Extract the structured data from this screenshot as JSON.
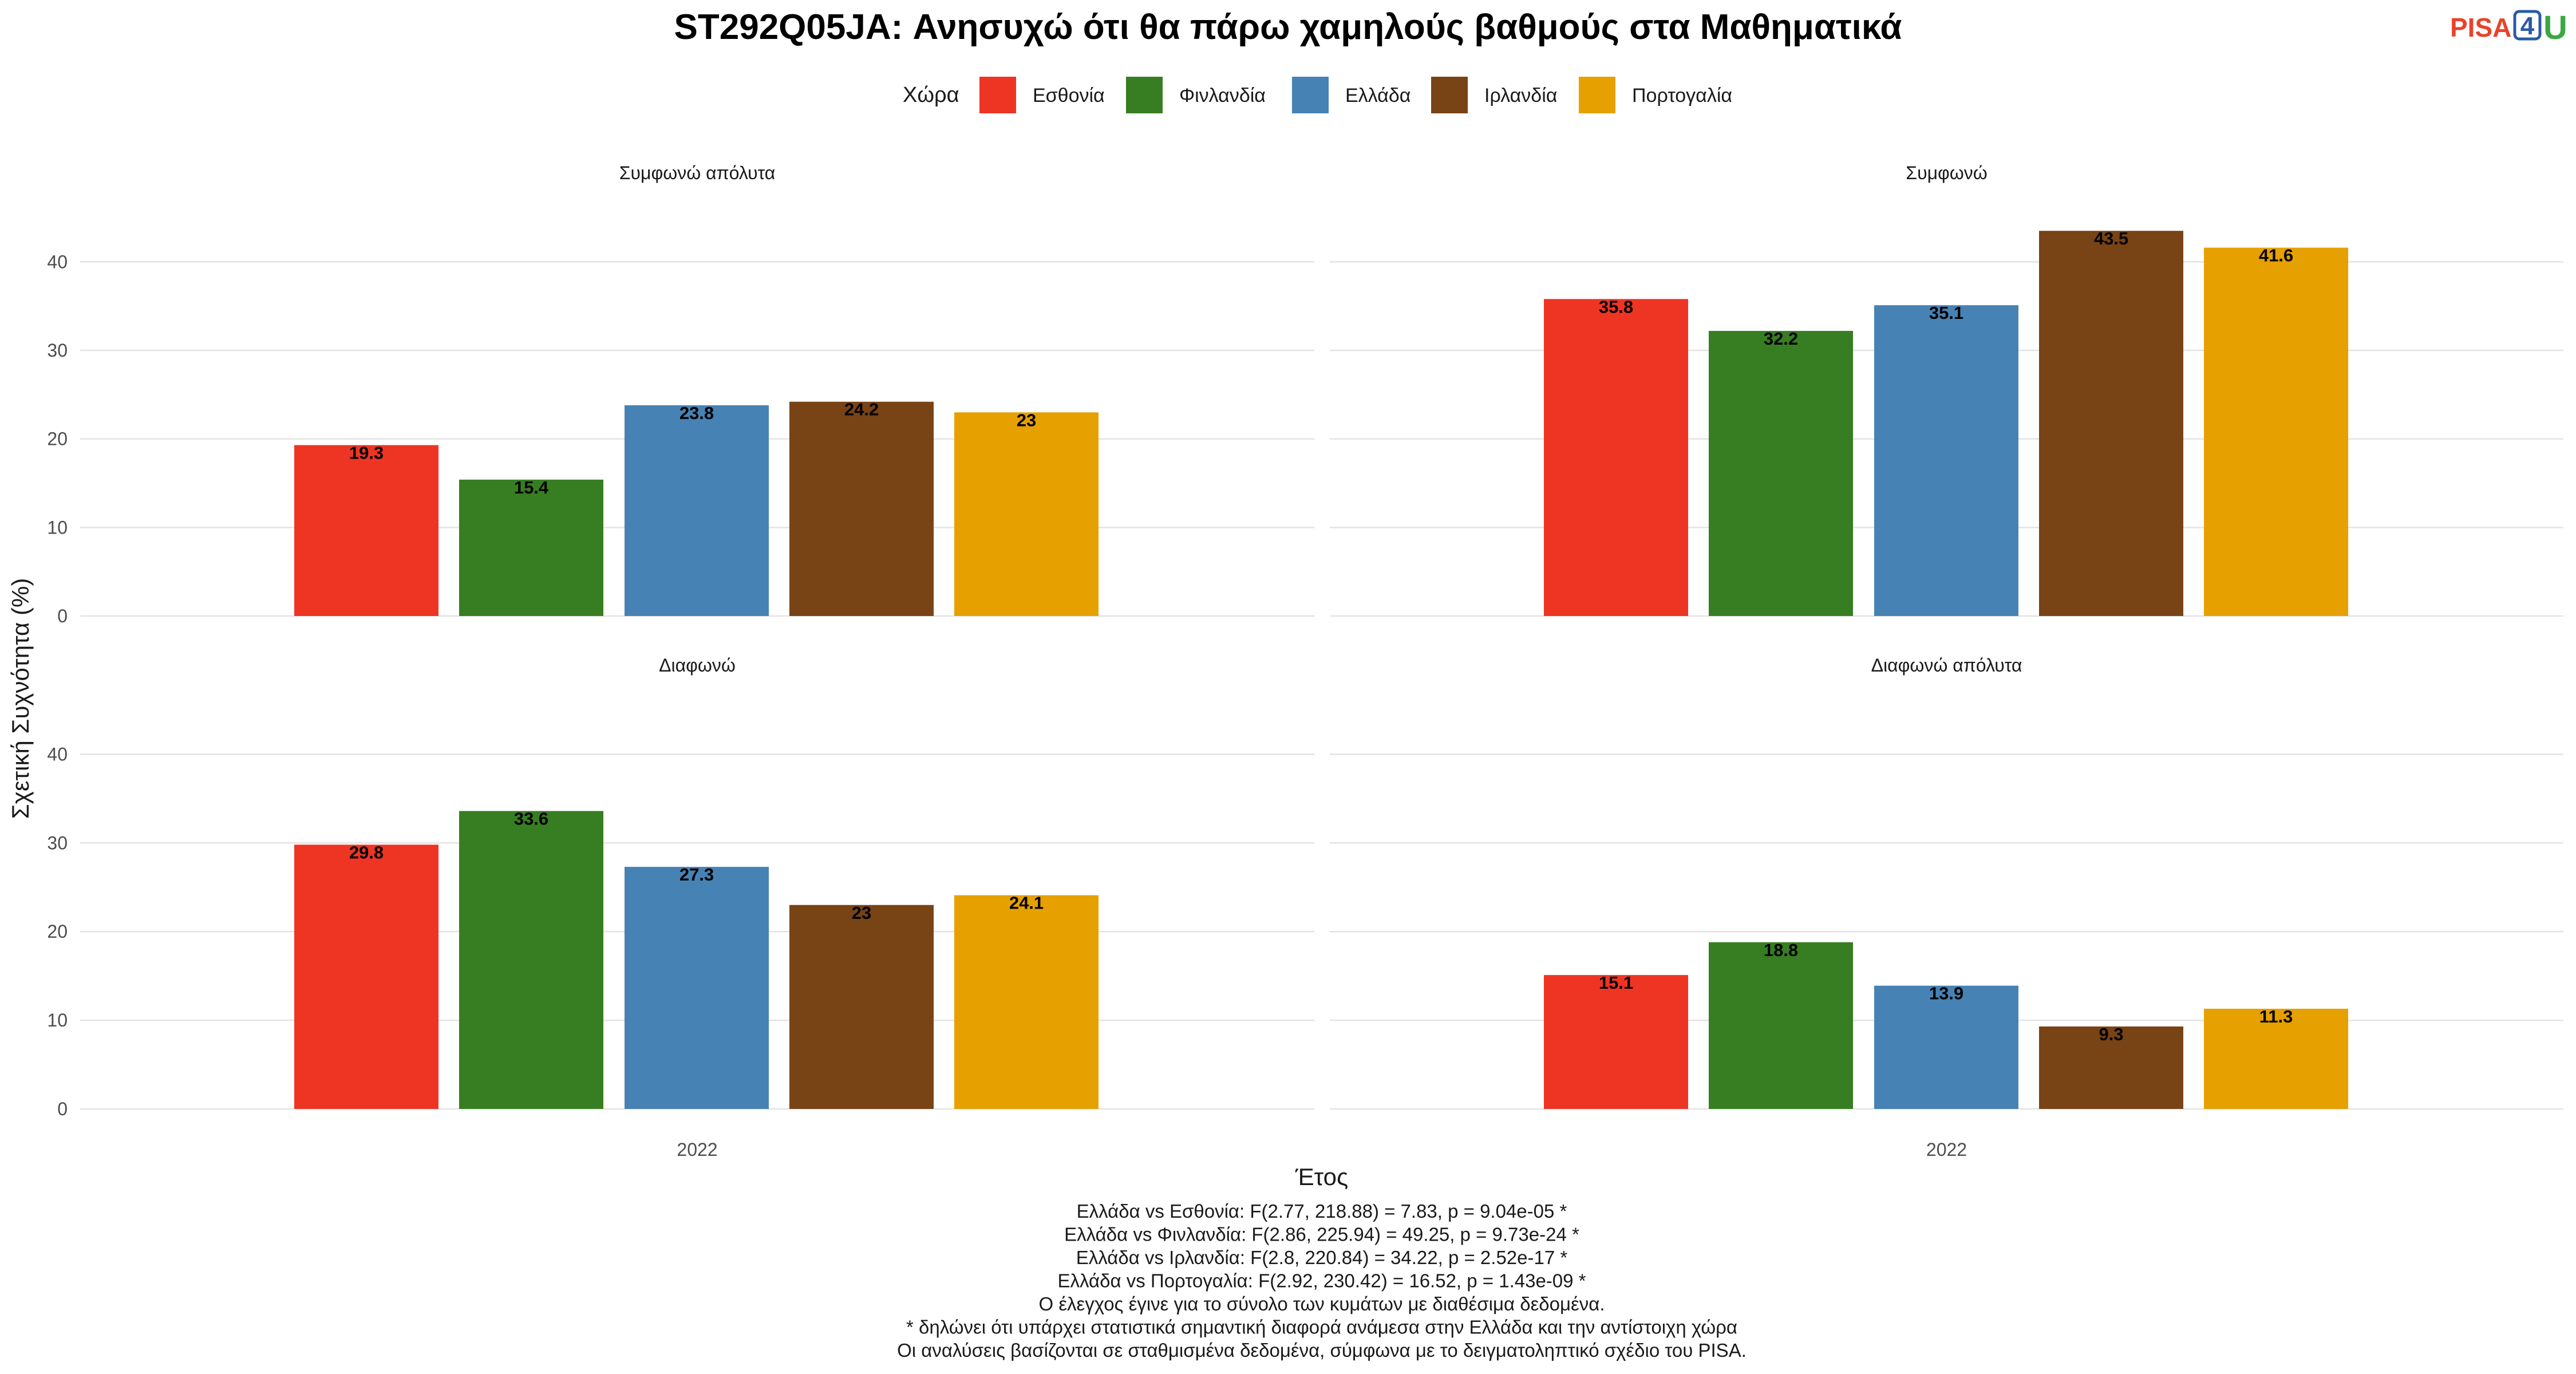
{
  "chart_data": {
    "type": "bar",
    "title": "ST292Q05JA: Ανησυχώ ότι θα πάρω χαμηλούς βαθμούς στα Μαθηματικά",
    "xlabel": "Έτος",
    "ylabel": "Σχετική Συχνότητα (%)",
    "ylim": [
      0,
      45
    ],
    "yticks": [
      0,
      10,
      20,
      30,
      40
    ],
    "grid": true,
    "legend": {
      "title": "Χώρα",
      "position": "top",
      "items": [
        {
          "name": "Εσθονία",
          "color": "#EE3524"
        },
        {
          "name": "Φινλανδία",
          "color": "#377E22"
        },
        {
          "name": "Ελλάδα",
          "color": "#4682B4"
        },
        {
          "name": "Ιρλανδία",
          "color": "#784315"
        },
        {
          "name": "Πορτογαλία",
          "color": "#E6A000"
        }
      ]
    },
    "categories": [
      "2022"
    ],
    "panels": [
      {
        "name": "Συμφωνώ απόλυτα",
        "values": [
          19.3,
          15.4,
          23.8,
          24.2,
          23
        ],
        "labels": [
          "19.3",
          "15.4",
          "23.8",
          "24.2",
          "23"
        ]
      },
      {
        "name": "Συμφωνώ",
        "values": [
          35.8,
          32.2,
          35.1,
          43.5,
          41.6
        ],
        "labels": [
          "35.8",
          "32.2",
          "35.1",
          "43.5",
          "41.6"
        ]
      },
      {
        "name": "Διαφωνώ",
        "values": [
          29.8,
          33.6,
          27.3,
          23,
          24.1
        ],
        "labels": [
          "29.8",
          "33.6",
          "27.3",
          "23",
          "24.1"
        ]
      },
      {
        "name": "Διαφωνώ απόλυτα",
        "values": [
          15.1,
          18.8,
          13.9,
          9.3,
          11.3
        ],
        "labels": [
          "15.1",
          "18.8",
          "13.9",
          "9.3",
          "11.3"
        ]
      }
    ],
    "caption": [
      "Ελλάδα vs Εσθονία: F(2.77, 218.88) = 7.83, p = 9.04e-05 *",
      "Ελλάδα vs Φινλανδία: F(2.86, 225.94) = 49.25, p = 9.73e-24 *",
      "Ελλάδα vs Ιρλανδία: F(2.8, 220.84) = 34.22, p = 2.52e-17 *",
      "Ελλάδα vs Πορτογαλία: F(2.92, 230.42) = 16.52, p = 1.43e-09 *",
      "Ο έλεγχος έγινε για το σύνολο των κυμάτων με διαθέσιμα δεδομένα.",
      "* δηλώνει ότι υπάρχει στατιστικά σημαντική διαφορά ανάμεσα στην Ελλάδα και την αντίστοιχη χώρα",
      "Οι αναλύσεις βασίζονται σε σταθμισμένα δεδομένα, σύμφωνα με το δειγματοληπτικό σχέδιο του PISA."
    ]
  },
  "logo": {
    "pisa": "PISA",
    "four": "4",
    "u": "U"
  }
}
